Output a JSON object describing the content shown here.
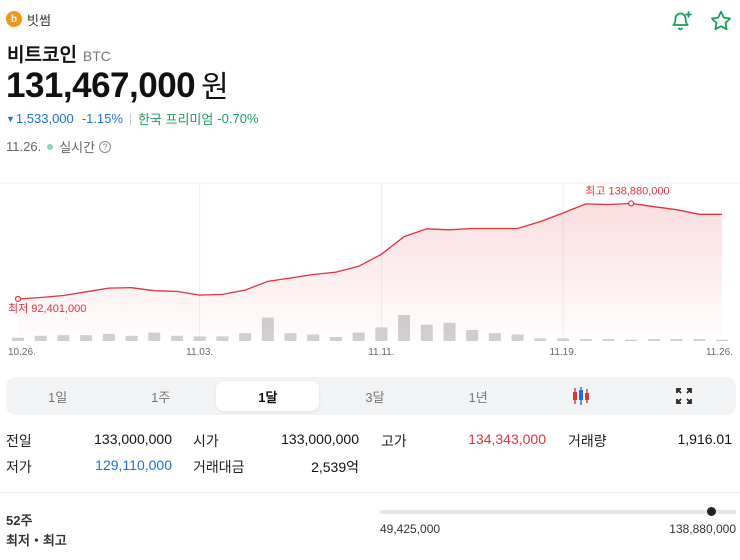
{
  "exchange": {
    "name": "빗썸",
    "logo_glyph": "b"
  },
  "coin": {
    "name": "비트코인",
    "symbol": "BTC"
  },
  "price": {
    "value": "131,467,000",
    "unit": "원"
  },
  "change": {
    "arrow": "▼",
    "abs": "1,533,000",
    "pct": "-1.15%",
    "premium_label": "한국 프리미엄",
    "premium_value": "-0.70%"
  },
  "time": {
    "date": "11.26.",
    "status": "실시간",
    "help": "?"
  },
  "chart_data": {
    "type": "line",
    "x": [
      "10.26.",
      "10.27.",
      "10.28.",
      "10.29.",
      "10.30.",
      "10.31.",
      "11.01.",
      "11.02.",
      "11.03.",
      "11.04.",
      "11.05.",
      "11.06.",
      "11.07.",
      "11.08.",
      "11.09.",
      "11.10.",
      "11.11.",
      "11.12.",
      "11.13.",
      "11.14.",
      "11.15.",
      "11.16.",
      "11.17.",
      "11.18.",
      "11.19.",
      "11.20.",
      "11.21.",
      "11.22.",
      "11.23.",
      "11.24.",
      "11.25.",
      "11.26."
    ],
    "price": [
      92401000,
      93100000,
      94000000,
      95700000,
      97400000,
      97600000,
      96200000,
      95900000,
      94200000,
      94500000,
      96500000,
      100500000,
      102100000,
      103700000,
      104800000,
      107500000,
      113000000,
      121200000,
      124800000,
      124300000,
      124900000,
      124900000,
      124900000,
      128100000,
      132100000,
      136300000,
      136000000,
      136500000,
      135000000,
      133600000,
      131467000,
      131467000
    ],
    "volume": [
      0.5,
      0.8,
      0.9,
      0.9,
      1.1,
      0.8,
      1.3,
      0.8,
      0.7,
      0.7,
      1.2,
      3.6,
      1.2,
      1.0,
      0.6,
      1.3,
      2.1,
      4.0,
      2.5,
      2.8,
      1.7,
      1.2,
      1.0,
      0.4,
      0.4,
      0.3,
      0.3,
      0.2,
      0.3,
      0.3,
      0.3,
      0.2
    ],
    "x_ticks": [
      "10.26.",
      "11.03.",
      "11.11.",
      "11.19.",
      "11.26."
    ],
    "high_label": "최고 138,880,000",
    "low_label": "최저 92,401,000",
    "ylim": [
      85000000,
      145000000
    ],
    "line_color": "#e0313c",
    "volume_color": "#d0d0d0"
  },
  "tabs": [
    {
      "label": "1일",
      "active": false
    },
    {
      "label": "1주",
      "active": false
    },
    {
      "label": "1달",
      "active": true
    },
    {
      "label": "3달",
      "active": false
    },
    {
      "label": "1년",
      "active": false
    }
  ],
  "stats": {
    "prev_close_label": "전일",
    "prev_close": "133,000,000",
    "open_label": "시가",
    "open": "133,000,000",
    "high_label": "고가",
    "high": "134,343,000",
    "volume_label": "거래량",
    "volume": "1,916.01",
    "low_label": "저가",
    "low": "129,110,000",
    "value_label": "거래대금",
    "value": "2,539억"
  },
  "week52": {
    "title": "52주",
    "subtitle": "최저・최고",
    "low": "49,425,000",
    "high": "138,880,000",
    "position": 0.93
  }
}
